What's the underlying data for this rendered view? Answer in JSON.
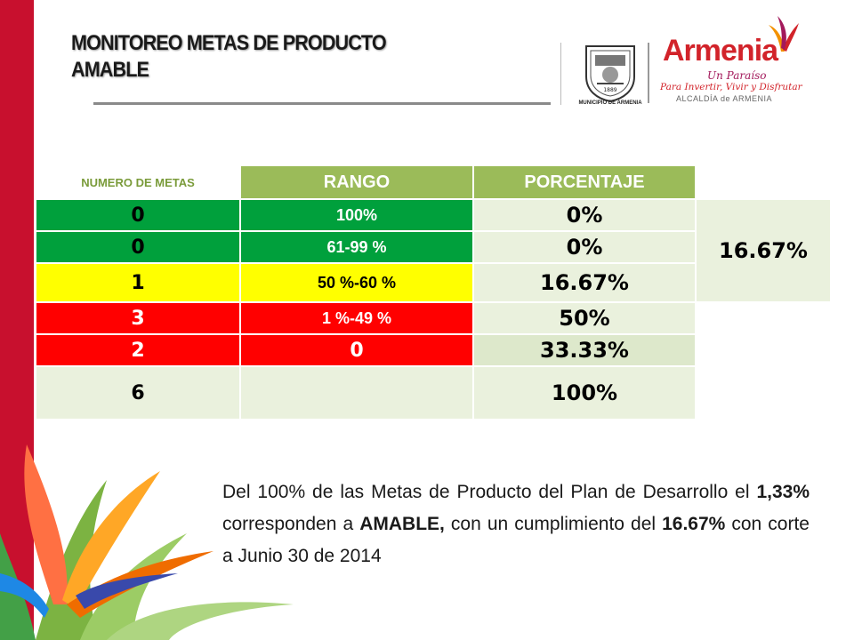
{
  "title": {
    "line1": "MONITOREO METAS DE PRODUCTO",
    "line2": "AMABLE"
  },
  "logos": {
    "municipality_label": "MUNICIPIO DE ARMENIA",
    "shield_year": "1889",
    "brand_name": "Armenia",
    "brand_tagline": "Un Paraíso",
    "brand_slogan": "Para Invertir, Vivir y Disfrutar",
    "brand_office": "ALCALDÍA de ARMENIA"
  },
  "table": {
    "headers": {
      "count": "NUMERO DE METAS",
      "range": "RANGO",
      "percent": "PORCENTAJE"
    },
    "rows": [
      {
        "count": "0",
        "range": "100%",
        "percent": "0%",
        "color": "#00a03c"
      },
      {
        "count": "0",
        "range": "61-99  %",
        "percent": "0%",
        "color": "#00a03c"
      },
      {
        "count": "1",
        "range": "50 %-60 %",
        "percent": "16.67%",
        "color": "#ffff00"
      },
      {
        "count": "3",
        "range": "1  %-49 %",
        "percent": "50%",
        "color": "#ff0000"
      },
      {
        "count": "2",
        "range": "0",
        "percent": "33.33%",
        "color": "#ff0000"
      },
      {
        "count": "6",
        "range": "",
        "percent": "100%",
        "color": "#eaf1dd"
      }
    ],
    "compliance": "16.67%"
  },
  "description": {
    "t1": "Del 100% de las Metas de Producto del Plan de Desarrollo el ",
    "b1": "1,33%",
    "t2": " corresponden a ",
    "b2": "AMABLE,",
    "t3": " con un cumplimiento del  ",
    "b3": "16.67%",
    "t4": " con corte a Junio 30 de 2014"
  }
}
